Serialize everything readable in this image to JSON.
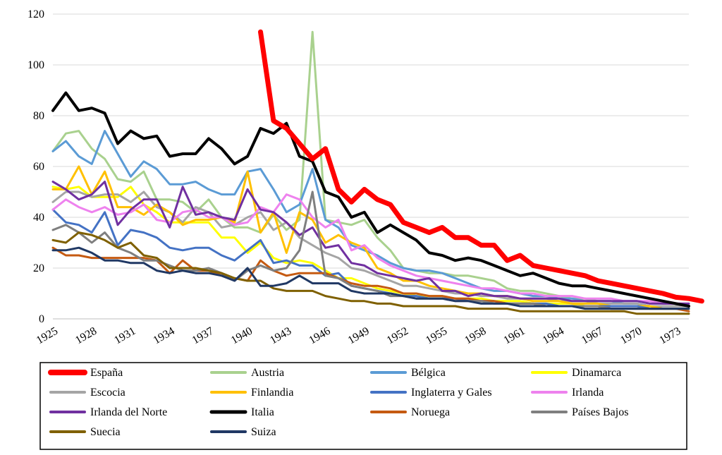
{
  "chart_data": {
    "type": "line",
    "title": "",
    "xlabel": "",
    "ylabel": "",
    "ylim": [
      0,
      120
    ],
    "yticks": [
      0,
      20,
      40,
      60,
      80,
      100,
      120
    ],
    "xlim": [
      1925,
      1974
    ],
    "xticks": [
      1925,
      1928,
      1931,
      1934,
      1937,
      1940,
      1943,
      1946,
      1949,
      1952,
      1955,
      1958,
      1961,
      1964,
      1967,
      1970,
      1973
    ],
    "grid": "horizontal",
    "legend_position": "bottom",
    "series": [
      {
        "name": "España",
        "color": "#ff0000",
        "width": 7,
        "start": 1941,
        "values": [
          113,
          78,
          75,
          69,
          63,
          67,
          51,
          46,
          51,
          47,
          45,
          38,
          36,
          34,
          36,
          32,
          32,
          29,
          29,
          23,
          25,
          21,
          20,
          19,
          18,
          17,
          15,
          14,
          13,
          12,
          11,
          10,
          8.5,
          8,
          7
        ]
      },
      {
        "name": "Austria",
        "color": "#a9d18e",
        "width": 3,
        "start": 1925,
        "values": [
          66,
          73,
          74,
          67,
          63,
          55,
          54,
          58,
          47,
          47,
          46,
          42,
          47,
          40,
          36,
          36,
          34,
          41,
          35,
          39,
          113,
          39,
          38,
          37,
          39,
          32,
          27,
          20,
          19,
          18,
          18,
          17,
          17,
          16,
          15,
          12,
          11,
          11,
          10,
          9,
          8,
          8,
          7,
          7,
          6,
          6,
          5,
          5,
          5,
          5
        ]
      },
      {
        "name": "Bélgica",
        "color": "#5b9bd5",
        "width": 3,
        "start": 1925,
        "values": [
          66,
          70,
          64,
          61,
          74,
          65,
          56,
          62,
          59,
          53,
          53,
          54,
          51,
          49,
          49,
          58,
          59,
          51,
          42,
          45,
          59,
          39,
          36,
          29,
          27,
          25,
          22,
          20,
          19,
          19,
          18,
          16,
          14,
          12,
          11,
          11,
          10,
          9,
          9,
          8,
          8,
          7,
          7,
          7,
          6,
          6,
          5,
          5,
          5,
          5
        ]
      },
      {
        "name": "Dinamarca",
        "color": "#ffff00",
        "width": 3,
        "start": 1925,
        "values": [
          52,
          51,
          52,
          48,
          48,
          48,
          52,
          45,
          42,
          38,
          38,
          38,
          38,
          32,
          32,
          26,
          30,
          24,
          22,
          23,
          22,
          19,
          16,
          16,
          14,
          12,
          11,
          10,
          9,
          9,
          9,
          8,
          8,
          8,
          7,
          7,
          7,
          6,
          6,
          6,
          6,
          5,
          5,
          5,
          5,
          5,
          4,
          4,
          4,
          4
        ]
      },
      {
        "name": "Escocia",
        "color": "#a5a5a5",
        "width": 3,
        "start": 1925,
        "values": [
          46,
          50,
          50,
          48,
          49,
          49,
          46,
          50,
          44,
          42,
          38,
          44,
          42,
          36,
          37,
          40,
          42,
          35,
          38,
          32,
          29,
          26,
          24,
          20,
          19,
          17,
          15,
          13,
          13,
          12,
          11,
          10,
          10,
          9,
          9,
          8,
          8,
          8,
          8,
          7,
          7,
          7,
          6,
          6,
          6,
          6,
          5,
          5,
          5,
          5
        ]
      },
      {
        "name": "Finlandia",
        "color": "#ffc000",
        "width": 3,
        "start": 1925,
        "values": [
          51,
          51,
          60,
          49,
          58,
          44,
          44,
          41,
          45,
          42,
          37,
          39,
          39,
          40,
          38,
          58,
          34,
          42,
          26,
          42,
          39,
          30,
          33,
          30,
          28,
          20,
          18,
          15,
          15,
          13,
          12,
          11,
          10,
          10,
          9,
          9,
          8,
          7,
          7,
          7,
          6,
          6,
          6,
          5,
          5,
          5,
          5,
          4,
          4,
          4
        ]
      },
      {
        "name": "Inglaterra y Gales",
        "color": "#4472c4",
        "width": 3,
        "start": 1925,
        "values": [
          43,
          38,
          37,
          34,
          42,
          29,
          35,
          34,
          32,
          28,
          27,
          28,
          28,
          25,
          23,
          27,
          31,
          22,
          23,
          21,
          21,
          17,
          18,
          13,
          12,
          11,
          10,
          9,
          9,
          8,
          8,
          8,
          7,
          7,
          7,
          6,
          6,
          6,
          6,
          5,
          5,
          5,
          5,
          5,
          5,
          5,
          4,
          4,
          4,
          4
        ]
      },
      {
        "name": "Irlanda",
        "color": "#ee82ee",
        "width": 3,
        "start": 1925,
        "values": [
          43,
          47,
          44,
          42,
          44,
          41,
          42,
          45,
          39,
          38,
          42,
          43,
          40,
          40,
          37,
          38,
          44,
          42,
          49,
          47,
          40,
          36,
          39,
          27,
          29,
          24,
          21,
          19,
          17,
          16,
          15,
          14,
          13,
          12,
          12,
          11,
          10,
          10,
          9,
          9,
          9,
          8,
          8,
          8,
          7,
          7,
          7,
          6,
          6,
          6
        ]
      },
      {
        "name": "Irlanda del Norte",
        "color": "#7030a0",
        "width": 3,
        "start": 1925,
        "values": [
          54,
          51,
          47,
          49,
          54,
          37,
          43,
          47,
          47,
          36,
          52,
          41,
          42,
          40,
          39,
          51,
          43,
          42,
          38,
          33,
          36,
          28,
          29,
          22,
          21,
          18,
          17,
          16,
          15,
          16,
          11,
          11,
          9,
          10,
          9,
          9,
          8,
          8,
          8,
          8,
          7,
          7,
          7,
          7,
          7,
          7,
          6,
          6,
          6,
          6
        ]
      },
      {
        "name": "Italia",
        "color": "#000000",
        "width": 4,
        "start": 1925,
        "values": [
          82,
          89,
          82,
          83,
          81,
          69,
          74,
          71,
          72,
          64,
          65,
          65,
          71,
          67,
          61,
          64,
          75,
          73,
          77,
          64,
          62,
          50,
          48,
          40,
          42,
          34,
          37,
          34,
          31,
          26,
          25,
          23,
          24,
          23,
          21,
          19,
          17,
          18,
          16,
          14,
          13,
          13,
          12,
          11,
          10,
          9,
          8,
          7,
          6,
          5
        ]
      },
      {
        "name": "Noruega",
        "color": "#c55a11",
        "width": 3,
        "start": 1925,
        "values": [
          28,
          25,
          25,
          24,
          24,
          24,
          24,
          24,
          23,
          18,
          23,
          19,
          19,
          17,
          16,
          15,
          23,
          19,
          17,
          18,
          18,
          18,
          16,
          14,
          13,
          13,
          12,
          10,
          10,
          9,
          9,
          8,
          8,
          7,
          7,
          6,
          6,
          6,
          5,
          5,
          5,
          5,
          5,
          4,
          4,
          4,
          4,
          4,
          4,
          3
        ]
      },
      {
        "name": "Países Bajos",
        "color": "#7f7f7f",
        "width": 3,
        "start": 1925,
        "values": [
          35,
          37,
          34,
          30,
          34,
          28,
          26,
          23,
          23,
          21,
          19,
          19,
          20,
          18,
          15,
          19,
          21,
          19,
          20,
          27,
          50,
          17,
          16,
          13,
          12,
          11,
          9,
          9,
          8,
          8,
          8,
          7,
          7,
          7,
          6,
          6,
          6,
          6,
          5,
          5,
          5,
          5,
          5,
          4,
          4,
          4,
          4,
          4,
          4,
          4
        ]
      },
      {
        "name": "Suecia",
        "color": "#7f6000",
        "width": 3,
        "start": 1925,
        "values": [
          31,
          30,
          34,
          33,
          31,
          28,
          30,
          25,
          24,
          20,
          20,
          20,
          19,
          18,
          16,
          15,
          15,
          12,
          11,
          11,
          11,
          9,
          8,
          7,
          7,
          6,
          6,
          5,
          5,
          5,
          5,
          5,
          4,
          4,
          4,
          4,
          3,
          3,
          3,
          3,
          3,
          3,
          3,
          3,
          3,
          2,
          2,
          2,
          2,
          2
        ]
      },
      {
        "name": "Suiza",
        "color": "#203864",
        "width": 3,
        "start": 1925,
        "values": [
          27,
          27,
          28,
          26,
          23,
          23,
          22,
          22,
          19,
          18,
          19,
          18,
          18,
          17,
          15,
          20,
          13,
          13,
          14,
          17,
          14,
          14,
          14,
          11,
          10,
          10,
          10,
          9,
          8,
          8,
          8,
          7,
          7,
          6,
          6,
          6,
          5,
          5,
          5,
          5,
          5,
          4,
          4,
          4,
          4,
          4,
          4,
          4,
          4,
          4
        ]
      }
    ]
  }
}
